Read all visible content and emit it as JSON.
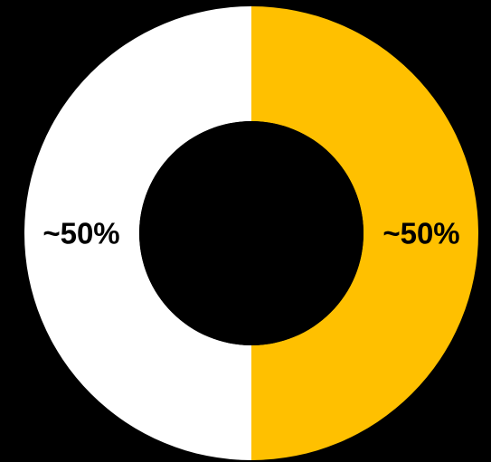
{
  "chart_data": {
    "type": "pie",
    "variant": "donut",
    "title": "",
    "legend": "none",
    "slices": [
      {
        "label": "~50%",
        "value": 50,
        "color": "#FFC000"
      },
      {
        "label": "~50%",
        "value": 50,
        "color": "#FFFFFF"
      }
    ]
  },
  "colors": {
    "background": "#000000",
    "hole": "#000000",
    "label_text": "#000000"
  }
}
